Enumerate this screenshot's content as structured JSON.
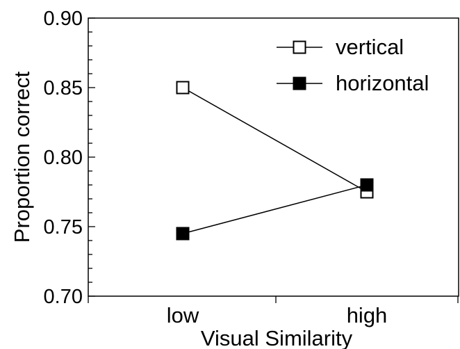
{
  "chart_data": {
    "type": "line",
    "title": "",
    "xlabel": "Visual Similarity",
    "ylabel": "Proportion correct",
    "categories": [
      "low",
      "high"
    ],
    "ylim": [
      0.7,
      0.9
    ],
    "y_ticks": [
      "0.70",
      "0.75",
      "0.80",
      "0.85",
      "0.90"
    ],
    "y_tick_values": [
      0.7,
      0.75,
      0.8,
      0.85,
      0.9
    ],
    "grid": false,
    "legend_position": "top-right",
    "series": [
      {
        "name": "vertical",
        "values": [
          0.85,
          0.775
        ],
        "marker": "open-square",
        "color": "#000000"
      },
      {
        "name": "horizontal",
        "values": [
          0.745,
          0.78
        ],
        "marker": "filled-square",
        "color": "#000000"
      }
    ]
  }
}
